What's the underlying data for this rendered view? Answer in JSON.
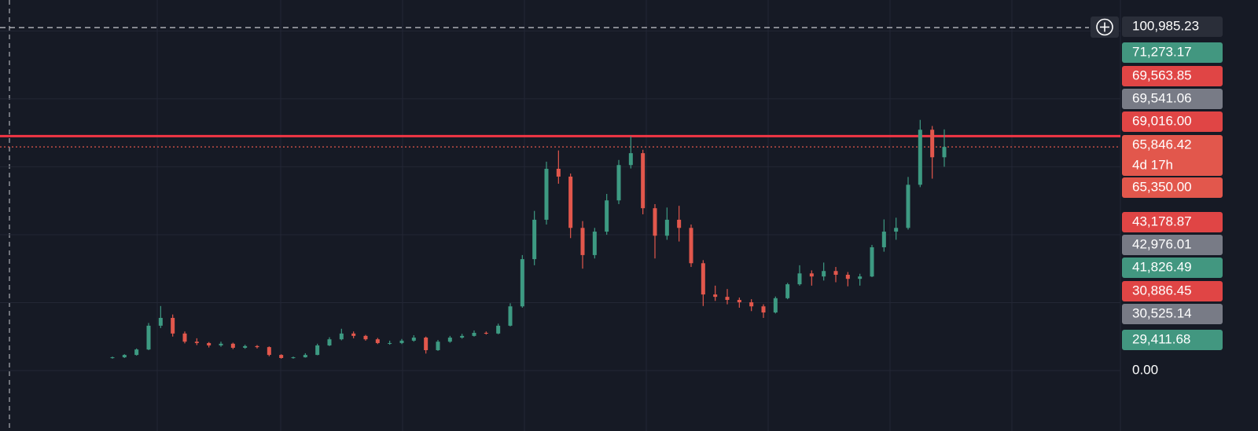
{
  "chart_data": {
    "type": "candlestick",
    "ylim": [
      -17800,
      109100
    ],
    "grid_y": [
      0,
      20000,
      40000,
      60000,
      80000,
      100000
    ],
    "up_color": "#3d9a82",
    "down_color": "#e2574c",
    "candles": [
      [
        3700,
        4100,
        3500,
        3900
      ],
      [
        3900,
        4800,
        3700,
        4600
      ],
      [
        4600,
        6500,
        4400,
        6200
      ],
      [
        6200,
        14000,
        6000,
        13200
      ],
      [
        13200,
        19000,
        12500,
        15500
      ],
      [
        15500,
        16500,
        10000,
        10900
      ],
      [
        10900,
        11500,
        8000,
        8500
      ],
      [
        8500,
        9500,
        7500,
        8100
      ],
      [
        8100,
        8400,
        6800,
        7400
      ],
      [
        7400,
        8500,
        7000,
        7900
      ],
      [
        7900,
        8200,
        6300,
        6700
      ],
      [
        6700,
        7600,
        6400,
        7200
      ],
      [
        7200,
        7500,
        6500,
        6900
      ],
      [
        6900,
        7100,
        4200,
        4600
      ],
      [
        4600,
        4800,
        3500,
        3700
      ],
      [
        3700,
        4100,
        3500,
        3900
      ],
      [
        3900,
        5100,
        3800,
        4600
      ],
      [
        4600,
        7900,
        4500,
        7400
      ],
      [
        7400,
        9800,
        7200,
        9200
      ],
      [
        9200,
        12300,
        8900,
        10900
      ],
      [
        10900,
        11500,
        9500,
        10200
      ],
      [
        10200,
        10500,
        8800,
        9200
      ],
      [
        9200,
        9600,
        7800,
        8100
      ],
      [
        8100,
        8800,
        7600,
        8100
      ],
      [
        8100,
        9300,
        7800,
        8800
      ],
      [
        8800,
        10400,
        8500,
        9700
      ],
      [
        9700,
        10000,
        5000,
        6000
      ],
      [
        6000,
        9000,
        5800,
        8500
      ],
      [
        8500,
        10200,
        8200,
        9700
      ],
      [
        9700,
        10800,
        9400,
        10200
      ],
      [
        10200,
        11800,
        10000,
        11100
      ],
      [
        11100,
        11500,
        10600,
        10900
      ],
      [
        10900,
        13800,
        10700,
        13200
      ],
      [
        13200,
        19800,
        13000,
        18900
      ],
      [
        18900,
        34000,
        18500,
        32800
      ],
      [
        32800,
        47000,
        31000,
        44400
      ],
      [
        44400,
        61500,
        43000,
        59400
      ],
      [
        59400,
        64800,
        55000,
        57100
      ],
      [
        57100,
        58000,
        39000,
        42000
      ],
      [
        42000,
        44000,
        30000,
        34000
      ],
      [
        34000,
        42000,
        33000,
        40900
      ],
      [
        40900,
        52000,
        40000,
        50100
      ],
      [
        50100,
        62000,
        49000,
        60500
      ],
      [
        60500,
        69000,
        59500,
        64000
      ],
      [
        64000,
        65000,
        46000,
        47800
      ],
      [
        47800,
        49000,
        33000,
        39700
      ],
      [
        39700,
        48000,
        38500,
        44400
      ],
      [
        44400,
        48500,
        38000,
        42000
      ],
      [
        42000,
        43000,
        30500,
        31600
      ],
      [
        31600,
        32500,
        19000,
        22400
      ],
      [
        22400,
        25000,
        20500,
        21700
      ],
      [
        21700,
        24000,
        19500,
        20800
      ],
      [
        20800,
        21500,
        18500,
        20100
      ],
      [
        20100,
        21000,
        17500,
        18900
      ],
      [
        18900,
        19500,
        15500,
        17100
      ],
      [
        17100,
        21800,
        16800,
        21300
      ],
      [
        21300,
        25800,
        21000,
        25400
      ],
      [
        25400,
        31000,
        25000,
        28600
      ],
      [
        28600,
        29500,
        25000,
        27700
      ],
      [
        27700,
        31800,
        26500,
        29300
      ],
      [
        29300,
        30500,
        26000,
        28200
      ],
      [
        28200,
        29000,
        24800,
        27000
      ],
      [
        27000,
        28500,
        25000,
        27700
      ],
      [
        27700,
        37000,
        27500,
        36300
      ],
      [
        36300,
        44500,
        35000,
        40900
      ],
      [
        40900,
        45000,
        38500,
        42000
      ],
      [
        42000,
        57000,
        41500,
        54700
      ],
      [
        54700,
        73800,
        54000,
        70900
      ],
      [
        70900,
        72000,
        56500,
        62800
      ],
      [
        62800,
        71000,
        60000,
        65846.42
      ]
    ],
    "lines": [
      {
        "value": 100985.23,
        "style": "dashed",
        "color": "#c8cad0"
      },
      {
        "value": 69016,
        "style": "solid",
        "color": "#f23645"
      },
      {
        "value": 65846.42,
        "style": "dotted",
        "color": "#e2574c"
      }
    ],
    "price_labels": [
      {
        "value": 100985.23,
        "label": "100,985.23",
        "color": "#2a2e39"
      },
      {
        "value": 71273.17,
        "label": "71,273.17",
        "color": "#429780"
      },
      {
        "value": 69563.85,
        "label": "69,563.85",
        "color": "#e04545"
      },
      {
        "value": 69541.06,
        "label": "69,541.06",
        "color": "#787b86"
      },
      {
        "value": 69016,
        "label": "69,016.00",
        "color": "#e04545"
      },
      {
        "value": 65846.42,
        "label": "65,846.42",
        "color": "#e2574c",
        "countdown": "4d 17h"
      },
      {
        "value": 65350,
        "label": "65,350.00",
        "color": "#e2574c"
      },
      {
        "value": 43178.87,
        "label": "43,178.87",
        "color": "#e04545"
      },
      {
        "value": 42976.01,
        "label": "42,976.01",
        "color": "#787b86"
      },
      {
        "value": 41826.49,
        "label": "41,826.49",
        "color": "#429780"
      },
      {
        "value": 30886.45,
        "label": "30,886.45",
        "color": "#e04545"
      },
      {
        "value": 30525.14,
        "label": "30,525.14",
        "color": "#787b86"
      },
      {
        "value": 29411.68,
        "label": "29,411.68",
        "color": "#429780"
      },
      {
        "value": 0,
        "label": "0.00"
      }
    ]
  }
}
